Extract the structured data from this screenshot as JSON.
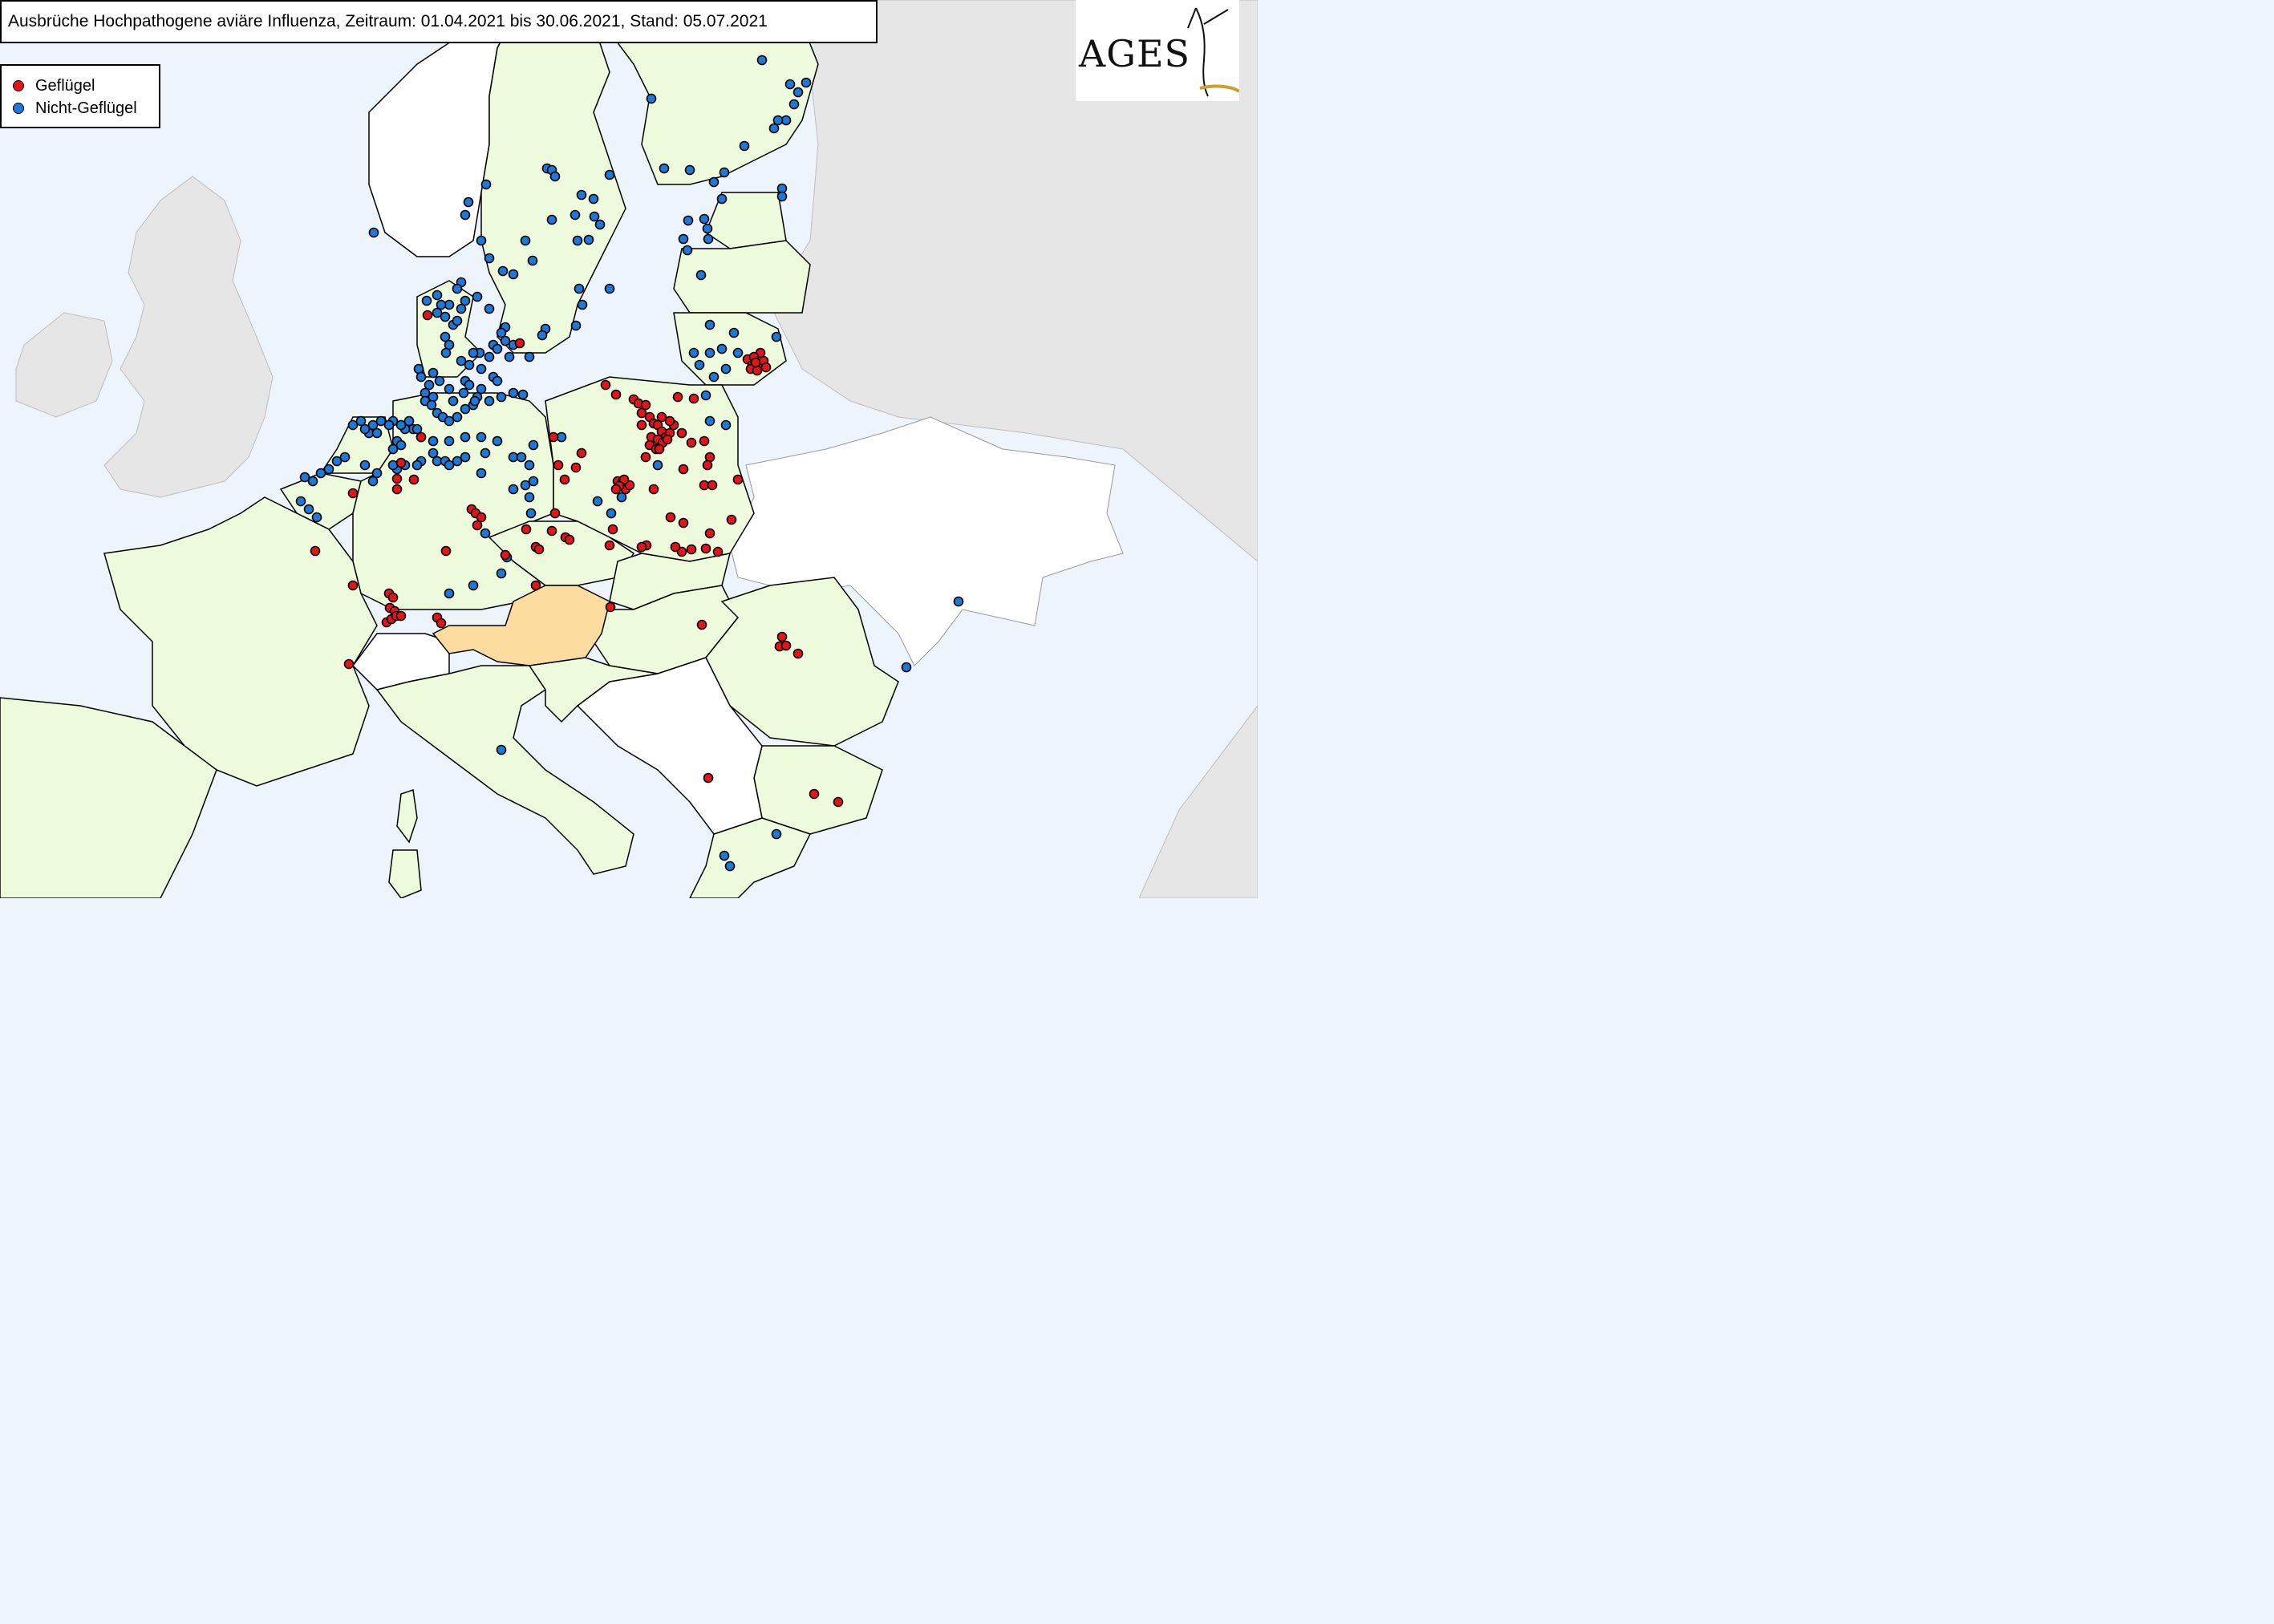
{
  "title": "Ausbrüche Hochpathogene aviäre Influenza, Zeitraum: 01.04.2021 bis 30.06.2021, Stand: 05.07.2021",
  "legend": {
    "poultry_label": "Geflügel",
    "poultry_color": "#e5141b",
    "nonpoultry_label": "Nicht-Geflügel",
    "nonpoultry_color": "#1f77d6"
  },
  "logo": {
    "text": "AGES"
  },
  "colors": {
    "sea": "#eef4fb",
    "affected_country": "#eefadc",
    "austria": "#fddca0",
    "unaffected_country": "#ffffff",
    "non_eu": "#e6e6e6",
    "uk_ireland": "#e6e6e6",
    "border": "#000000"
  }
}
